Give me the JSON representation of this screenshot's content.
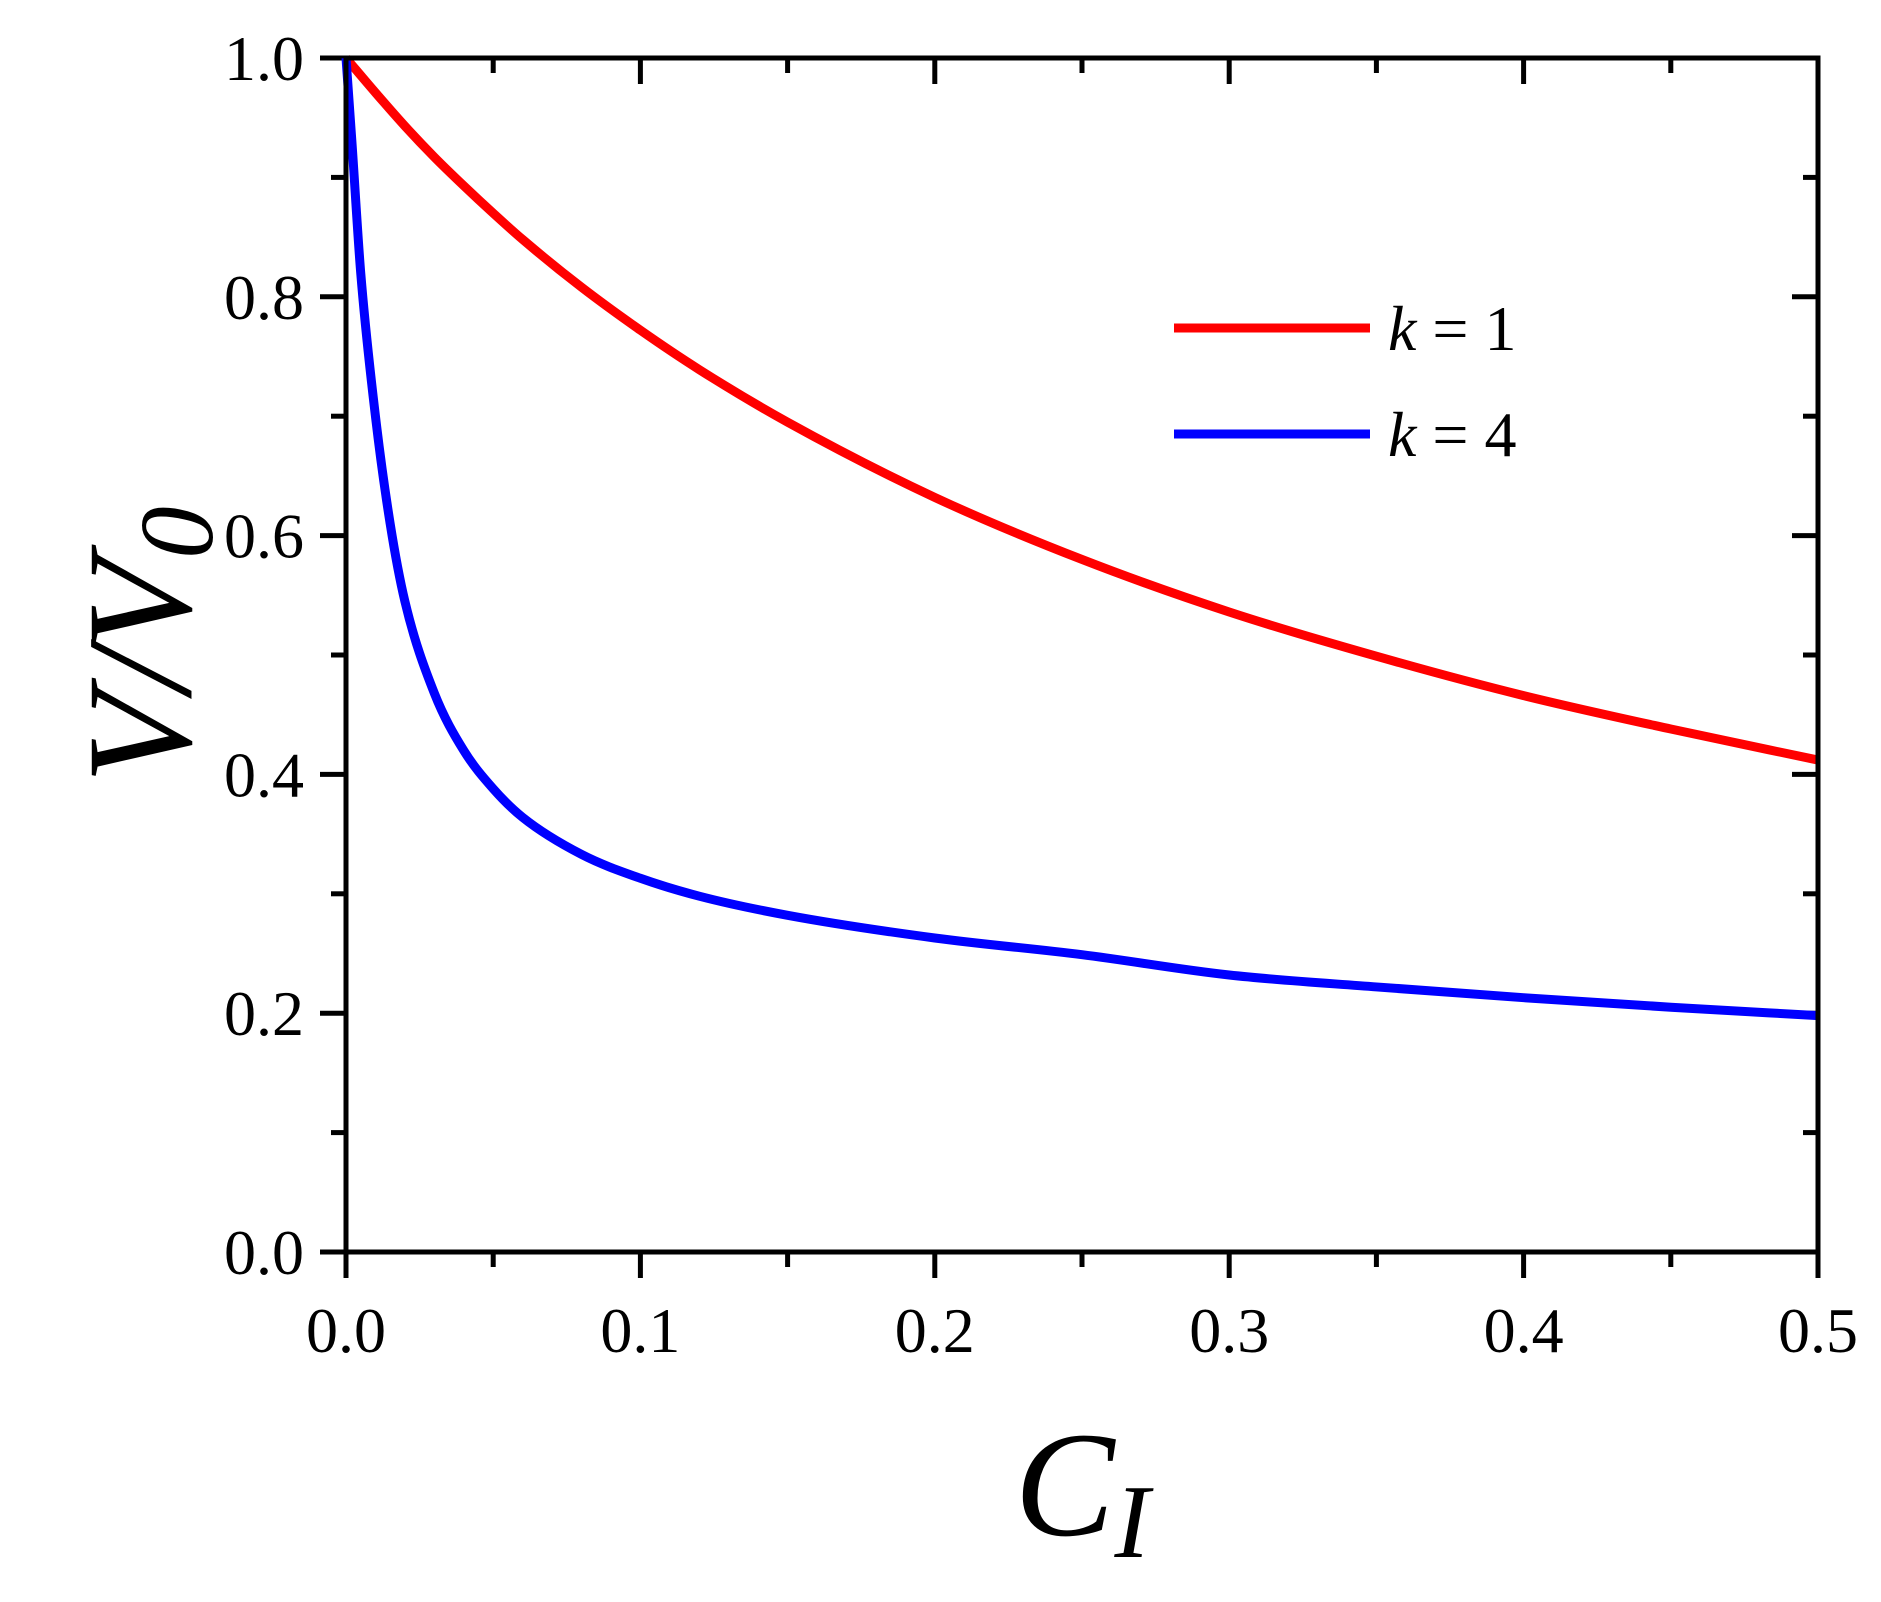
{
  "chart_data": {
    "type": "line",
    "title": "",
    "xlabel": {
      "main": "C",
      "sub": "I"
    },
    "ylabel": {
      "main": "V/V",
      "sub": "0"
    },
    "xlim": [
      0,
      0.5
    ],
    "ylim": [
      0,
      1.0
    ],
    "xticks": [
      "0.0",
      "0.1",
      "0.2",
      "0.3",
      "0.4",
      "0.5"
    ],
    "yticks": [
      "0.0",
      "0.2",
      "0.4",
      "0.6",
      "0.8",
      "1.0"
    ],
    "grid": false,
    "legend_position": "top-right",
    "series": [
      {
        "name": "k = 1",
        "var": "k",
        "eq": " = 1",
        "color": "#ff0000",
        "x": [
          0,
          0.01,
          0.02,
          0.03,
          0.04,
          0.05,
          0.06,
          0.08,
          0.1,
          0.12,
          0.15,
          0.2,
          0.25,
          0.3,
          0.35,
          0.4,
          0.45,
          0.5
        ],
        "y": [
          1.0,
          0.971,
          0.943,
          0.917,
          0.893,
          0.87,
          0.848,
          0.808,
          0.772,
          0.739,
          0.695,
          0.632,
          0.58,
          0.536,
          0.499,
          0.466,
          0.438,
          0.412
        ]
      },
      {
        "name": "k = 4",
        "var": "k",
        "eq": " = 4",
        "color": "#0000ff",
        "x": [
          0,
          0.002,
          0.005,
          0.01,
          0.015,
          0.02,
          0.03,
          0.04,
          0.05,
          0.06,
          0.08,
          0.1,
          0.12,
          0.15,
          0.2,
          0.25,
          0.3,
          0.35,
          0.4,
          0.45,
          0.5
        ],
        "y": [
          1.0,
          0.93,
          0.82,
          0.7,
          0.61,
          0.545,
          0.468,
          0.42,
          0.388,
          0.364,
          0.333,
          0.313,
          0.298,
          0.282,
          0.263,
          0.249,
          0.232,
          0.222,
          0.213,
          0.205,
          0.198
        ]
      }
    ]
  }
}
